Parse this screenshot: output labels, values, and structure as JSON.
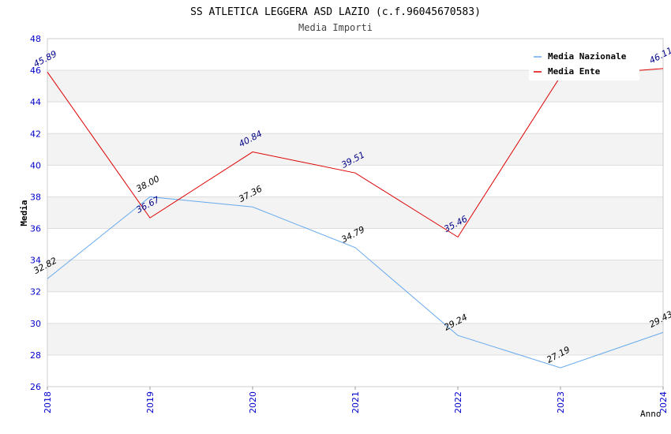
{
  "chart_data": {
    "type": "line",
    "title": "SS ATLETICA LEGGERA ASD LAZIO (c.f.96045670583)",
    "subtitle": "Media Importi",
    "xlabel": "Anno",
    "ylabel": "Media",
    "categories": [
      "2018",
      "2019",
      "2020",
      "2021",
      "2022",
      "2023",
      "2024"
    ],
    "ylim": [
      26,
      48
    ],
    "yticks": [
      26,
      28,
      30,
      32,
      34,
      36,
      38,
      40,
      42,
      44,
      46,
      48
    ],
    "grid": "horizontal bands",
    "legend_position": "top-right",
    "series": [
      {
        "name": "Media Nazionale",
        "color": "#66aaee",
        "label_color": "#000000",
        "values": [
          32.82,
          38.0,
          37.36,
          34.79,
          29.24,
          27.19,
          29.43
        ],
        "labels": [
          "32.82",
          "38.00",
          "37.36",
          "34.79",
          "29.24",
          "27.19",
          "29.43"
        ]
      },
      {
        "name": "Media Ente",
        "color": "#dd0000",
        "label_color": "#000088",
        "values": [
          45.89,
          36.67,
          40.84,
          39.51,
          35.46,
          45.62,
          46.11
        ],
        "labels": [
          "45.89",
          "36.67",
          "40.84",
          "39.51",
          "35.46",
          "",
          "46.11"
        ]
      }
    ]
  }
}
